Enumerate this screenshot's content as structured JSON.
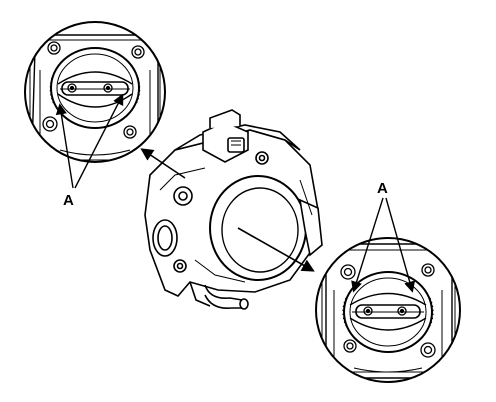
{
  "callouts": {
    "left_label": "A",
    "right_label": "A"
  },
  "colors": {
    "line": "#000000",
    "background": "#ffffff"
  }
}
